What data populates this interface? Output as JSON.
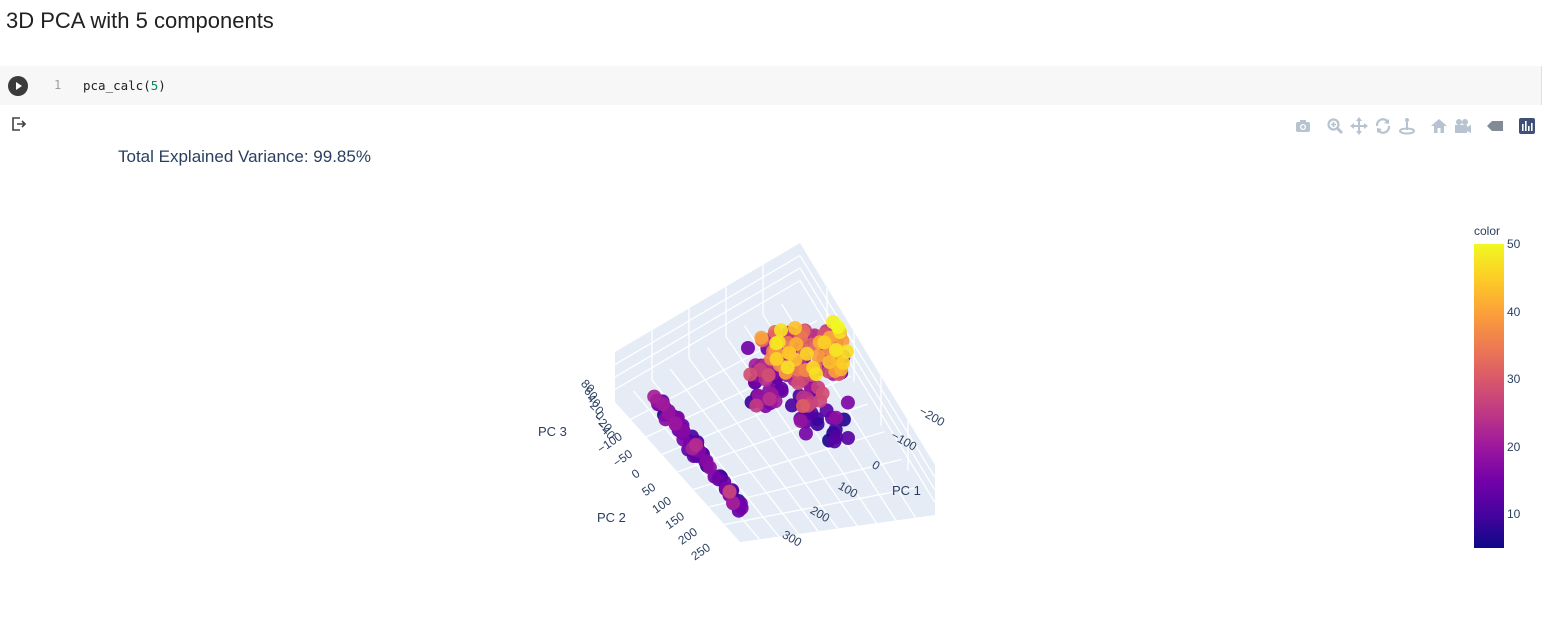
{
  "notebook": {
    "heading": "3D PCA with 5 components",
    "cell": {
      "line_number": "1",
      "code_fn": "pca_calc(",
      "code_arg": "5",
      "code_end": ")"
    }
  },
  "modebar": {
    "icons": [
      "camera-icon",
      "zoom-icon",
      "pan-icon",
      "orbit-rotation-icon",
      "turntable-rotation-icon",
      "reset-camera-default-icon",
      "reset-camera-last-save-icon",
      "toggle-hover-icon",
      "plotly-logo-icon"
    ]
  },
  "chart_data": {
    "type": "scatter3d",
    "title": "Total Explained Variance: 99.85%",
    "axes": {
      "x": {
        "label": "PC 1",
        "ticks": [
          "−200",
          "−100",
          "0",
          "100",
          "200",
          "300"
        ]
      },
      "y": {
        "label": "PC 2",
        "ticks": [
          "−100",
          "−50",
          "0",
          "50",
          "100",
          "150",
          "200",
          "250"
        ]
      },
      "z": {
        "label": "PC 3",
        "ticks": [
          "−40",
          "−20",
          "0",
          "20",
          "40",
          "60",
          "80"
        ]
      }
    },
    "colorbar": {
      "title": "color",
      "ticks": [
        "10",
        "20",
        "30",
        "40",
        "50"
      ],
      "range": [
        5,
        50
      ],
      "colorscale": "plasma"
    },
    "clusters": [
      {
        "name": "",
        "pc1_approx": 320,
        "pc2_approx": [
          -100,
          260
        ],
        "pc3_approx": [
          0,
          60
        ],
        "color_range": [
          5,
          28
        ]
      },
      {
        "name": "",
        "pc1_approx": [
          -250,
          0
        ],
        "pc2_approx": [
          -100,
          50
        ],
        "pc3_approx": [
          -30,
          80
        ],
        "color_range": [
          8,
          50
        ]
      }
    ],
    "colors": {
      "axis_text": "#2a3f5f",
      "gridplane": "#e5ecf6"
    }
  }
}
